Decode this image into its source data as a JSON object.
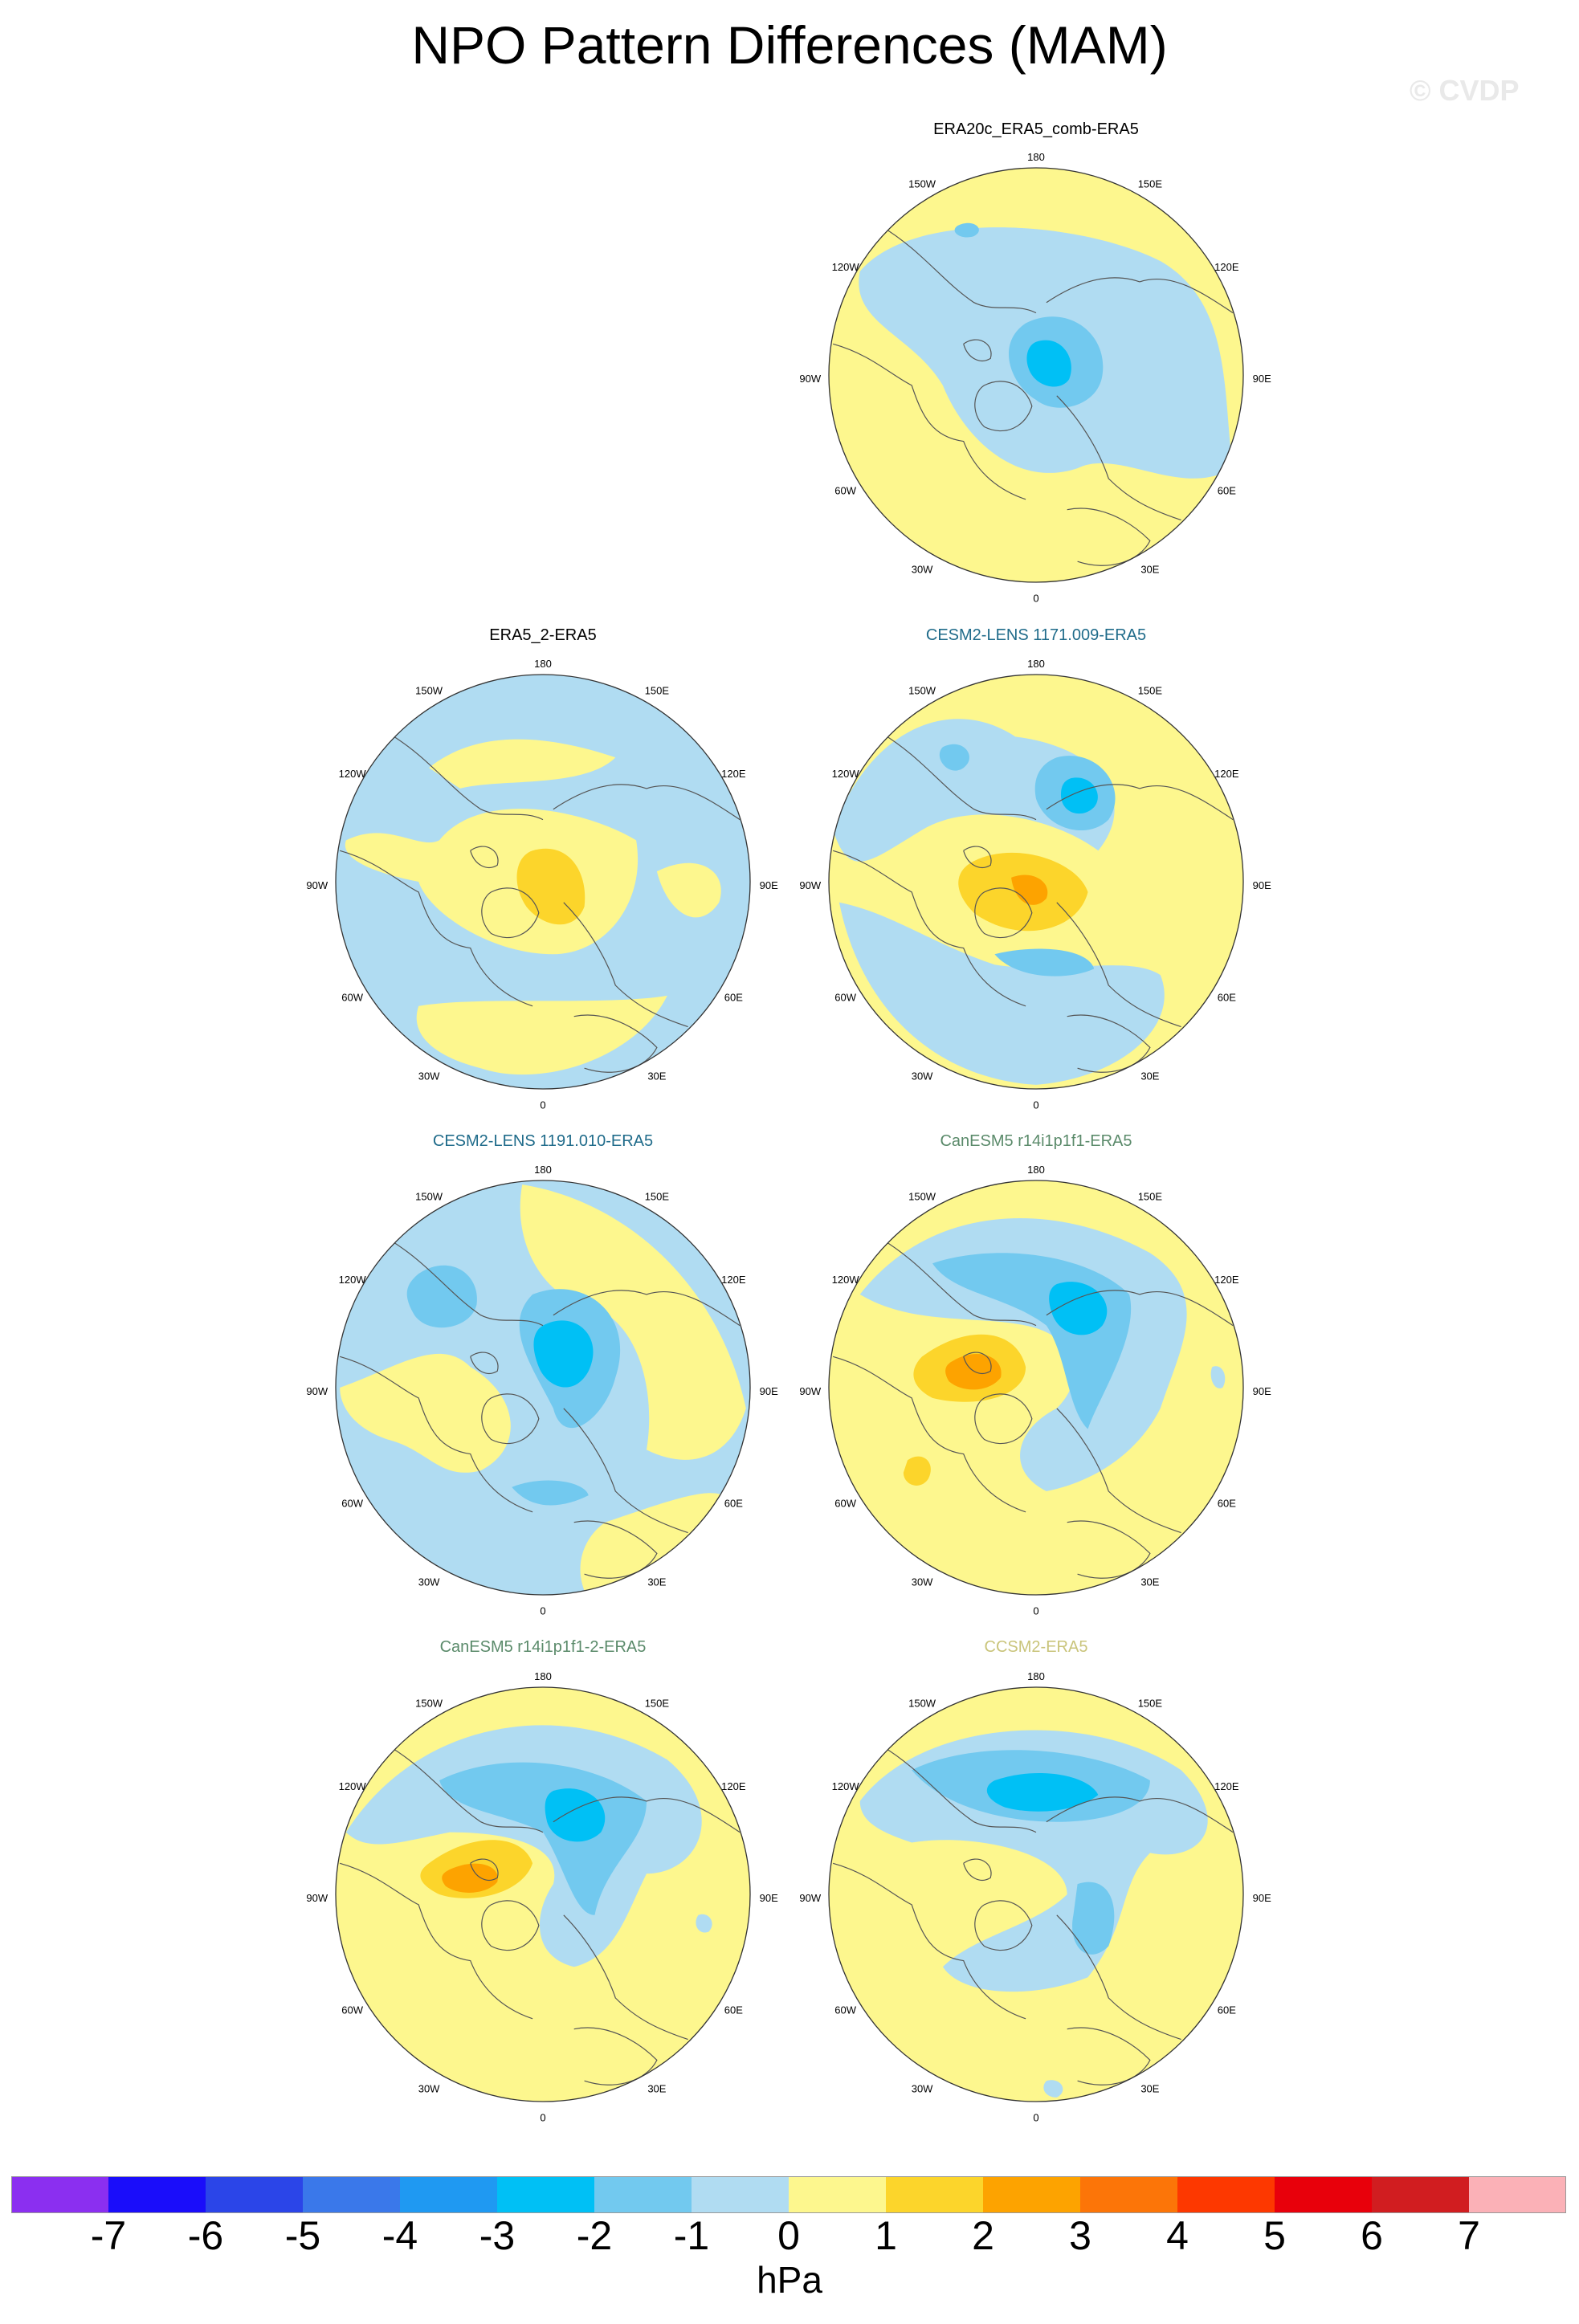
{
  "figure": {
    "title": "NPO Pattern Differences (MAM)",
    "watermark": "© CVDP"
  },
  "panels": [
    {
      "title": "ERA20c_ERA5_comb-ERA5",
      "title_color": "#000000",
      "pattern": "p1"
    },
    {
      "title": "ERA5_2-ERA5",
      "title_color": "#000000",
      "pattern": "p2"
    },
    {
      "title": "CESM2-LENS 1171.009-ERA5",
      "title_color": "#1f6b8a",
      "pattern": "p3"
    },
    {
      "title": "CESM2-LENS 1191.010-ERA5",
      "title_color": "#1f6b8a",
      "pattern": "p4"
    },
    {
      "title": "CanESM5 r14i1p1f1-ERA5",
      "title_color": "#5a8a6a",
      "pattern": "p5"
    },
    {
      "title": "CanESM5 r14i1p1f1-2-ERA5",
      "title_color": "#5a8a6a",
      "pattern": "p6"
    },
    {
      "title": "CCSM2-ERA5",
      "title_color": "#c9c47a",
      "pattern": "p7"
    }
  ],
  "lon_labels": {
    "top": "180",
    "bottom": "0",
    "w150": "150W",
    "e150": "150E",
    "w120": "120W",
    "e120": "120E",
    "w90": "90W",
    "e90": "90E",
    "w60": "60W",
    "e60": "60E",
    "w30": "30W",
    "e30": "30E"
  },
  "colorbar": {
    "units": "hPa",
    "labels": [
      "-7",
      "-6",
      "-5",
      "-4",
      "-3",
      "-2",
      "-1",
      "0",
      "1",
      "2",
      "3",
      "4",
      "5",
      "6",
      "7"
    ],
    "colors": [
      "#8b2ff0",
      "#1a0dfa",
      "#2b45e8",
      "#3a78ea",
      "#1f99f2",
      "#00c0f5",
      "#72c9ef",
      "#b0dcf2",
      "#fdf78e",
      "#fcd52b",
      "#fda300",
      "#fc7508",
      "#fd3800",
      "#e8000b",
      "#d11d20",
      "#fbb1b7"
    ]
  }
}
